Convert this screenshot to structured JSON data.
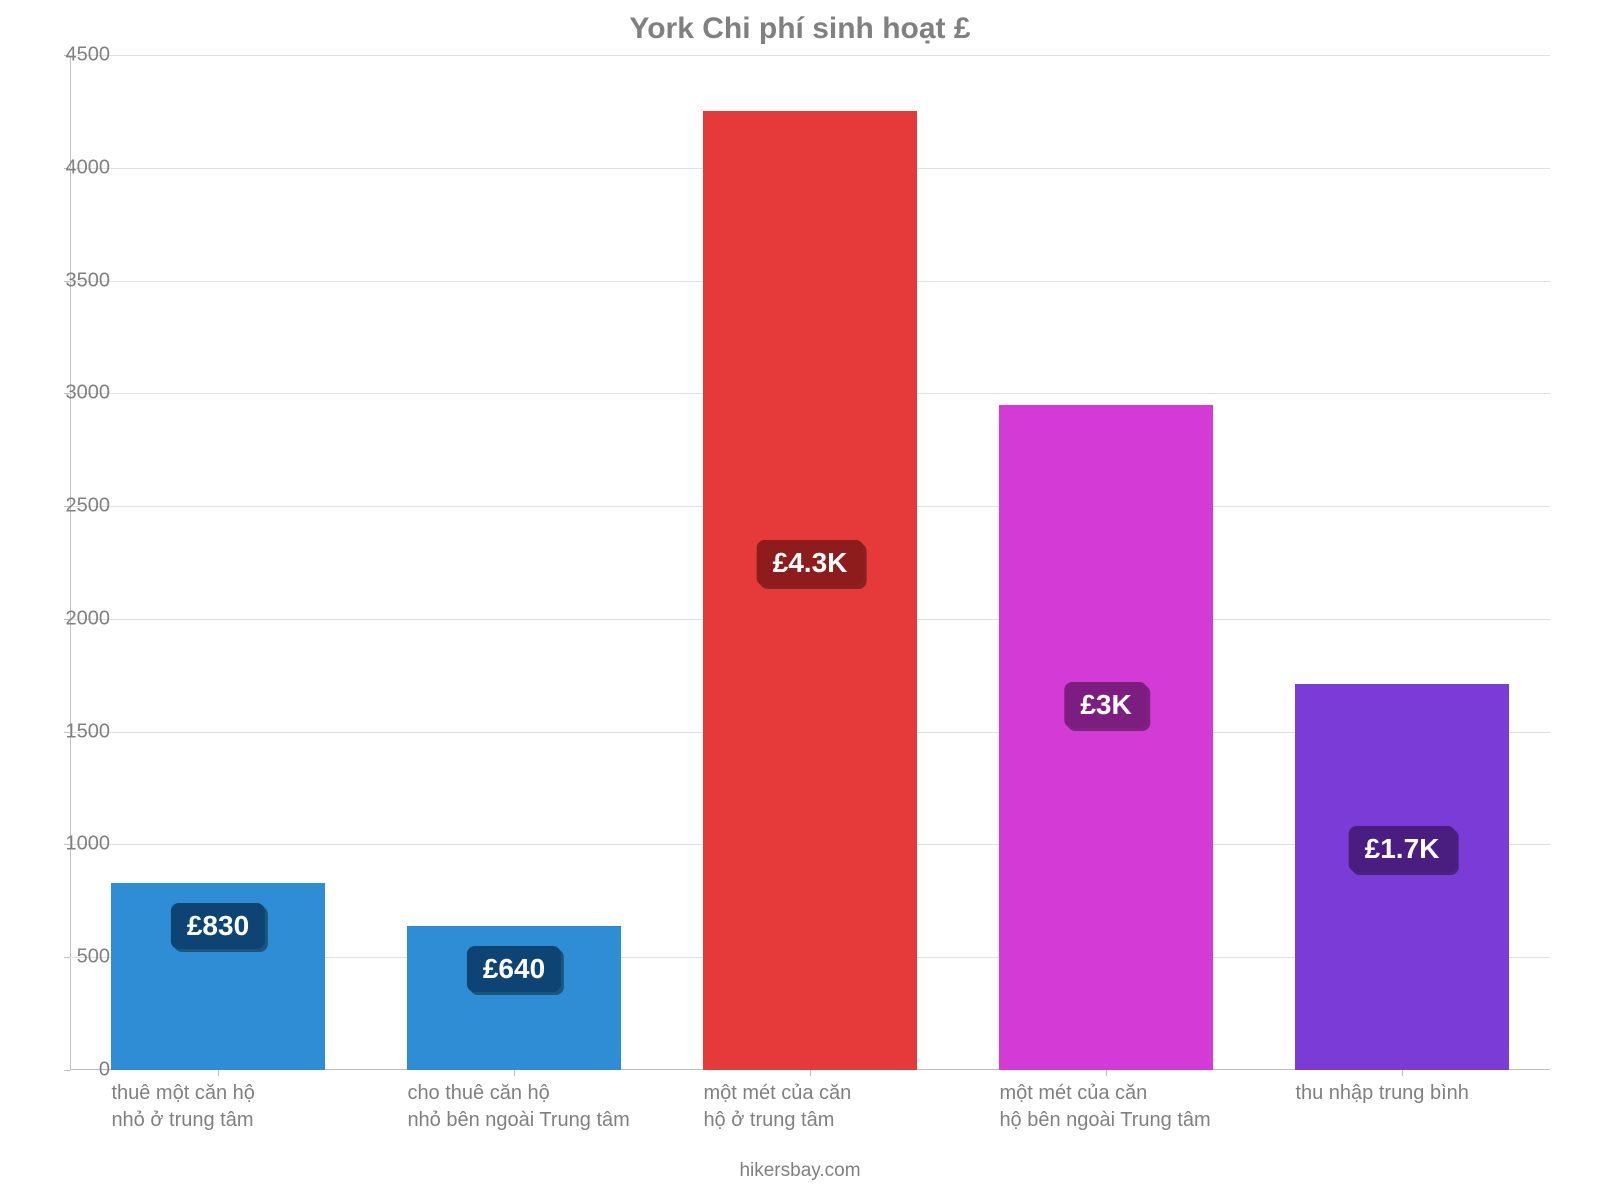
{
  "chart": {
    "type": "bar",
    "title": "York Chi phí sinh hoạt £",
    "title_color": "#808080",
    "title_fontsize": 30,
    "background_color": "#ffffff",
    "grid_color": "#e0e0e0",
    "axis_color": "#bfbfbf",
    "tick_label_color": "#808080",
    "tick_label_fontsize": 20,
    "ylim": [
      0,
      4500
    ],
    "ytick_step": 500,
    "yticks": [
      0,
      500,
      1000,
      1500,
      2000,
      2500,
      3000,
      3500,
      4000,
      4500
    ],
    "bar_width_ratio": 0.72,
    "categories": [
      "thuê một căn hộ\nnhỏ ở trung tâm",
      "cho thuê căn hộ\nnhỏ bên ngoài Trung tâm",
      "một mét của căn\nhộ ở trung tâm",
      "một mét của căn\nhộ bên ngoài Trung tâm",
      "thu nhập trung bình"
    ],
    "values": [
      830,
      640,
      4250,
      2950,
      1710
    ],
    "display_labels": [
      "£830",
      "£640",
      "£4.3K",
      "£3K",
      "£1.7K"
    ],
    "bar_colors": [
      "#2f8dd6",
      "#2f8dd6",
      "#e63a3a",
      "#d43bd6",
      "#7b3bd6"
    ],
    "label_bg_colors": [
      "#0e4473",
      "#0e4473",
      "#8f1c1c",
      "#7d1d80",
      "#4a1d80"
    ],
    "label_text_color": "#ffffff",
    "label_fontsize": 28,
    "footer": "hikersbay.com",
    "footer_color": "#808080",
    "footer_fontsize": 19
  }
}
